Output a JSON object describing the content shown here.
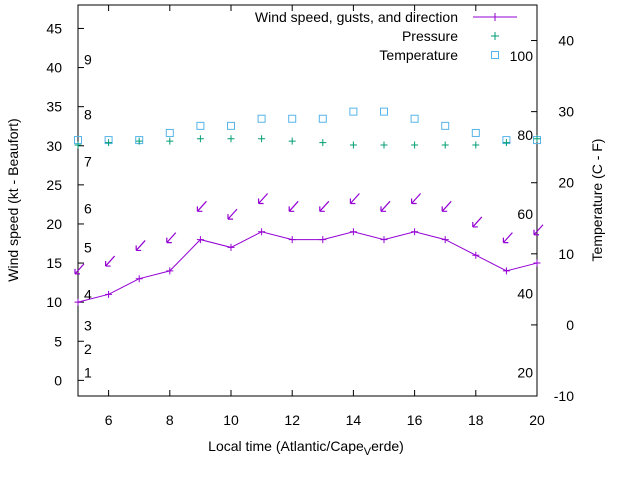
{
  "chart_data": {
    "type": "line",
    "xlabel": "Local time (Atlantic/Cape",
    "xlabel_subscript": "V",
    "xlabel_tail": "erde)",
    "ylabel": "Wind speed (kt - Beaufort)",
    "y2label": "Temperature (C - F)",
    "xlim": [
      5,
      20
    ],
    "ylim": [
      -2,
      48
    ],
    "y2lim": [
      -10,
      45
    ],
    "x_ticks": [
      "6",
      "8",
      "10",
      "12",
      "14",
      "16",
      "18",
      "20"
    ],
    "y_ticks": [
      "0",
      "5",
      "10",
      "15",
      "20",
      "25",
      "30",
      "35",
      "40",
      "45"
    ],
    "y2_ticks": [
      "-10",
      "0",
      "10",
      "20",
      "30",
      "40"
    ],
    "beaufort_labels": [
      {
        "label": "1",
        "y": 1
      },
      {
        "label": "2",
        "y": 4
      },
      {
        "label": "3",
        "y": 7
      },
      {
        "label": "4",
        "y": 11
      },
      {
        "label": "5",
        "y": 17
      },
      {
        "label": "6",
        "y": 22
      },
      {
        "label": "7",
        "y": 28
      },
      {
        "label": "8",
        "y": 34
      },
      {
        "label": "9",
        "y": 41
      }
    ],
    "fahrenheit_labels": [
      {
        "label": "20",
        "c": -6.7
      },
      {
        "label": "40",
        "c": 4.4
      },
      {
        "label": "60",
        "c": 15.6
      },
      {
        "label": "80",
        "c": 26.7
      },
      {
        "label": "100",
        "c": 37.8
      }
    ],
    "series": [
      {
        "name": "Wind speed, gusts, and direction",
        "color": "#9400d3",
        "x": [
          5,
          6,
          7,
          8,
          9,
          10,
          11,
          12,
          13,
          14,
          15,
          16,
          17,
          18,
          19,
          20
        ],
        "y": [
          10,
          11,
          13,
          14,
          18,
          17,
          19,
          18,
          18,
          19,
          18,
          19,
          18,
          16,
          14,
          15
        ]
      },
      {
        "name": "Pressure",
        "color": "#009e73",
        "x": [
          5,
          6,
          7,
          8,
          9,
          10,
          11,
          12,
          13,
          14,
          15,
          16,
          17,
          18,
          19,
          20
        ],
        "y": [
          30.1,
          30.4,
          30.6,
          30.6,
          30.9,
          30.9,
          30.9,
          30.6,
          30.4,
          30.1,
          30.1,
          30.1,
          30.1,
          30.1,
          30.4,
          30.9
        ]
      },
      {
        "name": "Temperature",
        "color": "#56b4e9",
        "axis": "y2",
        "x": [
          5,
          6,
          7,
          8,
          9,
          10,
          11,
          12,
          13,
          14,
          15,
          16,
          17,
          18,
          19,
          20
        ],
        "y": [
          26,
          26,
          26,
          27,
          28,
          28,
          29,
          29,
          29,
          30,
          30,
          29,
          28,
          27,
          26,
          26
        ]
      }
    ],
    "wind_arrows": [
      {
        "x": 5,
        "y": 14
      },
      {
        "x": 6,
        "y": 15
      },
      {
        "x": 7,
        "y": 17
      },
      {
        "x": 8,
        "y": 18
      },
      {
        "x": 9,
        "y": 22
      },
      {
        "x": 10,
        "y": 21
      },
      {
        "x": 11,
        "y": 23
      },
      {
        "x": 12,
        "y": 22
      },
      {
        "x": 13,
        "y": 22
      },
      {
        "x": 14,
        "y": 23
      },
      {
        "x": 15,
        "y": 22
      },
      {
        "x": 16,
        "y": 23
      },
      {
        "x": 17,
        "y": 22
      },
      {
        "x": 18,
        "y": 20
      },
      {
        "x": 19,
        "y": 18
      },
      {
        "x": 20,
        "y": 19
      }
    ],
    "legend_position": "top-right",
    "grid": false
  }
}
